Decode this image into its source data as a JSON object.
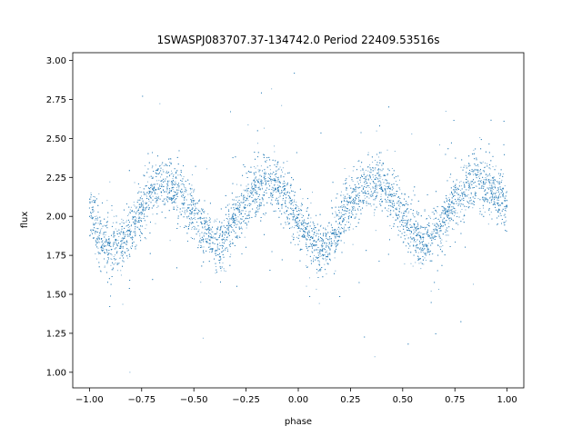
{
  "chart_data": {
    "type": "scatter",
    "title": "1SWASPJ083707.37-134742.0 Period 22409.53516s",
    "xlabel": "phase",
    "ylabel": "flux",
    "xlim": [
      -1.08,
      1.08
    ],
    "ylim": [
      0.9,
      3.05
    ],
    "xticks": [
      -1.0,
      -0.75,
      -0.5,
      -0.25,
      0.0,
      0.25,
      0.5,
      0.75,
      1.0
    ],
    "xtick_labels": [
      "−1.00",
      "−0.75",
      "−0.50",
      "−0.25",
      "0.00",
      "0.25",
      "0.50",
      "0.75",
      "1.00"
    ],
    "yticks": [
      1.0,
      1.25,
      1.5,
      1.75,
      2.0,
      2.25,
      2.5,
      2.75,
      3.0
    ],
    "ytick_labels": [
      "1.00",
      "1.25",
      "1.50",
      "1.75",
      "2.00",
      "2.25",
      "2.50",
      "2.75",
      "3.00"
    ],
    "grid": false,
    "marker_color": "#1f77b4",
    "series": [
      {
        "description_points": "phase-folded light curve, mean flux ~2.0, amplitude ~0.22, two cycles per unit phase",
        "x": [
          -1.0,
          -0.95,
          -0.9,
          -0.85,
          -0.8,
          -0.75,
          -0.7,
          -0.65,
          -0.6,
          -0.55,
          -0.5,
          -0.45,
          -0.4,
          -0.35,
          -0.3,
          -0.25,
          -0.2,
          -0.15,
          -0.1,
          -0.05,
          0.0,
          0.05,
          0.1,
          0.15,
          0.2,
          0.25,
          0.3,
          0.35,
          0.4,
          0.45,
          0.5,
          0.55,
          0.6,
          0.65,
          0.7,
          0.75,
          0.8,
          0.85,
          0.9,
          0.95,
          1.0
        ],
        "y": [
          2.05,
          1.85,
          1.78,
          1.8,
          1.92,
          2.05,
          2.17,
          2.21,
          2.19,
          2.12,
          2.02,
          1.9,
          1.82,
          1.86,
          1.97,
          2.09,
          2.18,
          2.22,
          2.19,
          2.1,
          1.99,
          1.87,
          1.77,
          1.82,
          1.95,
          2.08,
          2.18,
          2.22,
          2.2,
          2.12,
          2.02,
          1.9,
          1.82,
          1.88,
          1.98,
          2.1,
          2.19,
          2.22,
          2.2,
          2.14,
          2.05
        ]
      }
    ]
  }
}
